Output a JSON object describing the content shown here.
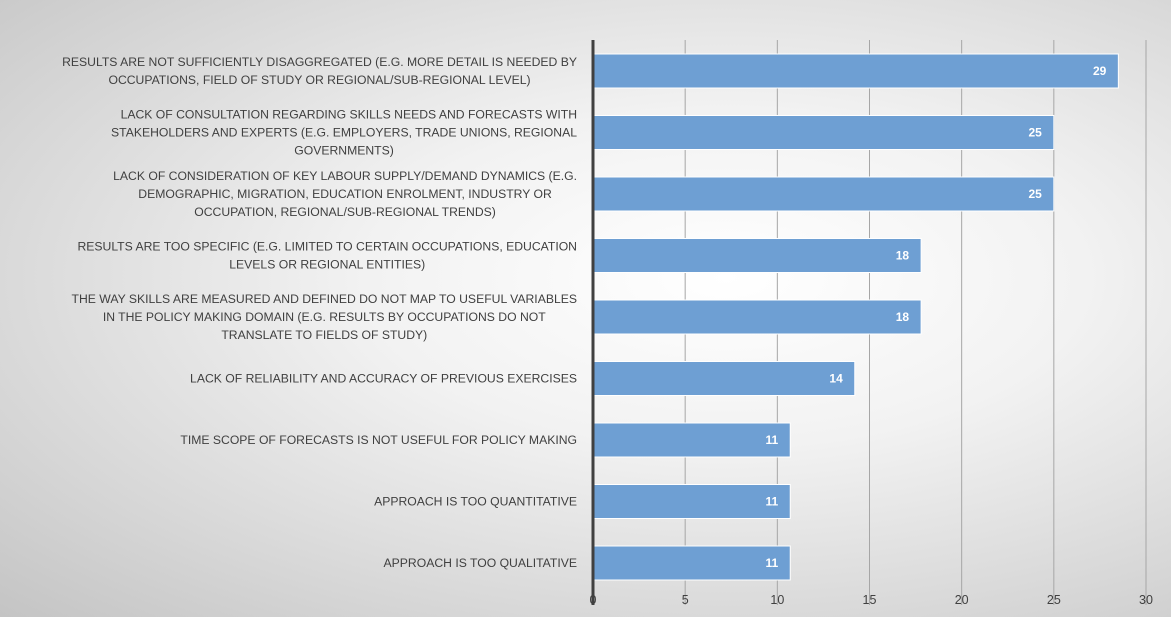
{
  "chart_data": {
    "type": "bar",
    "orientation": "horizontal",
    "categories": [
      "RESULTS ARE NOT SUFFICIENTLY DISAGGREGATED (E.G. MORE DETAIL IS NEEDED BY OCCUPATIONS, FIELD OF STUDY OR REGIONAL/SUB-REGIONAL LEVEL)",
      "LACK OF CONSULTATION REGARDING SKILLS NEEDS AND FORECASTS WITH STAKEHOLDERS AND EXPERTS (E.G. EMPLOYERS, TRADE UNIONS, REGIONAL GOVERNMENTS)",
      "LACK OF CONSIDERATION OF KEY LABOUR SUPPLY/DEMAND DYNAMICS (E.G. DEMOGRAPHIC, MIGRATION, EDUCATION ENROLMENT, INDUSTRY OR OCCUPATION, REGIONAL/SUB-REGIONAL TRENDS)",
      "RESULTS ARE TOO SPECIFIC (E.G. LIMITED TO CERTAIN OCCUPATIONS, EDUCATION LEVELS OR REGIONAL ENTITIES)",
      "THE WAY SKILLS ARE MEASURED AND DEFINED DO NOT MAP TO USEFUL VARIABLES IN THE POLICY MAKING DOMAIN (E.G. RESULTS BY OCCUPATIONS DO NOT TRANSLATE TO FIELDS OF STUDY)",
      "LACK OF RELIABILITY AND ACCURACY OF PREVIOUS EXERCISES",
      "TIME SCOPE OF FORECASTS IS NOT USEFUL FOR POLICY MAKING",
      "APPROACH IS TOO QUANTITATIVE",
      "APPROACH IS TOO QUALITATIVE"
    ],
    "label_lines": [
      [
        "RESULTS ARE NOT SUFFICIENTLY DISAGGREGATED (E.G. MORE DETAIL IS NEEDED BY",
        "OCCUPATIONS, FIELD OF STUDY OR REGIONAL/SUB-REGIONAL LEVEL)"
      ],
      [
        "LACK OF CONSULTATION REGARDING SKILLS NEEDS AND FORECASTS WITH",
        "STAKEHOLDERS AND EXPERTS (E.G. EMPLOYERS, TRADE UNIONS, REGIONAL",
        "GOVERNMENTS)"
      ],
      [
        "LACK OF CONSIDERATION OF KEY LABOUR SUPPLY/DEMAND DYNAMICS (E.G.",
        "DEMOGRAPHIC, MIGRATION, EDUCATION ENROLMENT, INDUSTRY OR",
        "OCCUPATION, REGIONAL/SUB-REGIONAL TRENDS)"
      ],
      [
        "RESULTS ARE TOO SPECIFIC (E.G. LIMITED TO CERTAIN OCCUPATIONS, EDUCATION",
        "LEVELS OR REGIONAL ENTITIES)"
      ],
      [
        "THE WAY SKILLS ARE MEASURED AND DEFINED DO NOT MAP TO USEFUL VARIABLES",
        "IN THE POLICY MAKING DOMAIN (E.G. RESULTS BY OCCUPATIONS DO NOT",
        "TRANSLATE TO FIELDS OF STUDY)"
      ],
      [
        "LACK OF RELIABILITY AND ACCURACY OF PREVIOUS EXERCISES"
      ],
      [
        "TIME SCOPE OF FORECASTS IS NOT USEFUL FOR POLICY MAKING"
      ],
      [
        "APPROACH IS TOO QUANTITATIVE"
      ],
      [
        "APPROACH IS TOO QUALITATIVE"
      ]
    ],
    "values": [
      28.5,
      25,
      25,
      17.8,
      17.8,
      14.2,
      10.7,
      10.7,
      10.7
    ],
    "data_labels": [
      "29",
      "25",
      "25",
      "18",
      "18",
      "14",
      "11",
      "11",
      "11"
    ],
    "xlim": [
      0,
      30
    ],
    "xticks": [
      0,
      5,
      10,
      15,
      20,
      25,
      30
    ],
    "grid": true,
    "title": "",
    "xlabel": "",
    "ylabel": "",
    "bar_color": "#6e9fd3",
    "bar_edge_color": "#ffffff",
    "axis_color": "#404040",
    "grid_color": "#a6a6a6"
  }
}
